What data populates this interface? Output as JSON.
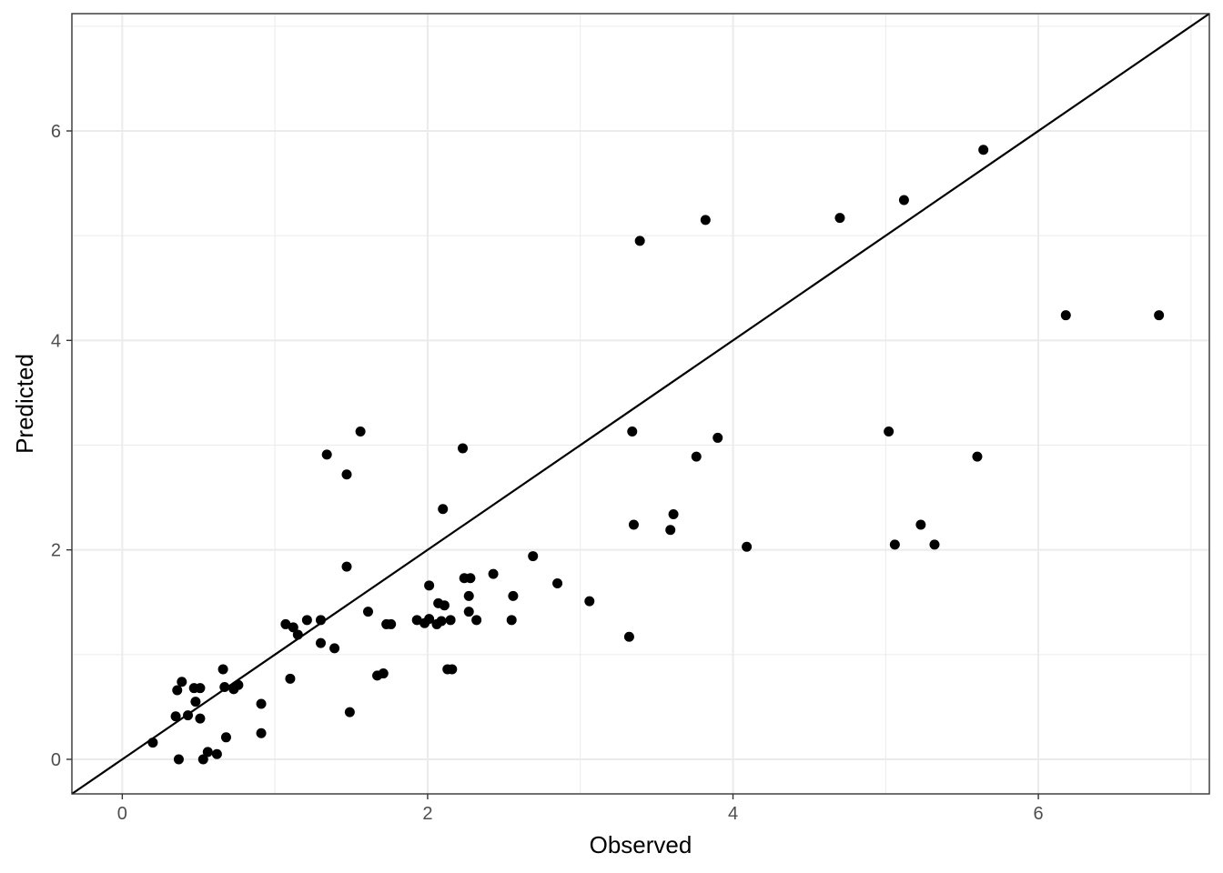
{
  "chart_data": {
    "type": "scatter",
    "title": "",
    "xlabel": "Observed",
    "ylabel": "Predicted",
    "xlim": [
      -0.33,
      7.12
    ],
    "ylim": [
      -0.33,
      7.12
    ],
    "x_ticks": [
      0,
      2,
      4,
      6
    ],
    "y_ticks": [
      0,
      2,
      4,
      6
    ],
    "x_tick_labels": [
      "0",
      "2",
      "4",
      "6"
    ],
    "y_tick_labels": [
      "0",
      "2",
      "4",
      "6"
    ],
    "grid": true,
    "legend": "none",
    "reference_line": {
      "type": "identity",
      "slope": 1,
      "intercept": 0
    },
    "point_color": "#000000",
    "line_color": "#000000",
    "grid_color": "#ebebeb",
    "points": [
      [
        0.2,
        0.16
      ],
      [
        0.37,
        0.0
      ],
      [
        0.35,
        0.41
      ],
      [
        0.43,
        0.42
      ],
      [
        0.51,
        0.39
      ],
      [
        0.36,
        0.66
      ],
      [
        0.39,
        0.74
      ],
      [
        0.47,
        0.68
      ],
      [
        0.51,
        0.68
      ],
      [
        0.48,
        0.55
      ],
      [
        0.53,
        0.0
      ],
      [
        0.56,
        0.07
      ],
      [
        0.62,
        0.05
      ],
      [
        0.68,
        0.21
      ],
      [
        0.66,
        0.86
      ],
      [
        0.67,
        0.69
      ],
      [
        0.73,
        0.67
      ],
      [
        0.76,
        0.71
      ],
      [
        0.91,
        0.53
      ],
      [
        0.91,
        0.25
      ],
      [
        1.07,
        1.29
      ],
      [
        1.12,
        1.26
      ],
      [
        1.15,
        1.19
      ],
      [
        1.21,
        1.33
      ],
      [
        1.1,
        0.77
      ],
      [
        1.3,
        1.33
      ],
      [
        1.3,
        1.11
      ],
      [
        1.39,
        1.06
      ],
      [
        1.34,
        2.91
      ],
      [
        1.47,
        2.72
      ],
      [
        1.56,
        3.13
      ],
      [
        1.47,
        1.84
      ],
      [
        1.49,
        0.45
      ],
      [
        1.61,
        1.41
      ],
      [
        1.67,
        0.8
      ],
      [
        1.71,
        0.82
      ],
      [
        1.73,
        1.29
      ],
      [
        1.76,
        1.29
      ],
      [
        1.93,
        1.33
      ],
      [
        1.98,
        1.3
      ],
      [
        2.01,
        1.66
      ],
      [
        2.01,
        1.34
      ],
      [
        2.06,
        1.29
      ],
      [
        2.07,
        1.49
      ],
      [
        2.09,
        1.32
      ],
      [
        2.11,
        1.47
      ],
      [
        2.1,
        2.39
      ],
      [
        2.13,
        0.86
      ],
      [
        2.16,
        0.86
      ],
      [
        2.15,
        1.33
      ],
      [
        2.24,
        1.73
      ],
      [
        2.27,
        1.56
      ],
      [
        2.28,
        1.73
      ],
      [
        2.27,
        1.41
      ],
      [
        2.32,
        1.33
      ],
      [
        2.23,
        2.97
      ],
      [
        2.43,
        1.77
      ],
      [
        2.55,
        1.33
      ],
      [
        2.56,
        1.56
      ],
      [
        2.69,
        1.94
      ],
      [
        2.85,
        1.68
      ],
      [
        3.06,
        1.51
      ],
      [
        3.32,
        1.17
      ],
      [
        3.34,
        3.13
      ],
      [
        3.35,
        2.24
      ],
      [
        3.39,
        4.95
      ],
      [
        3.59,
        2.19
      ],
      [
        3.61,
        2.34
      ],
      [
        3.76,
        2.89
      ],
      [
        3.82,
        5.15
      ],
      [
        3.9,
        3.07
      ],
      [
        4.09,
        2.03
      ],
      [
        4.7,
        5.17
      ],
      [
        5.02,
        3.13
      ],
      [
        5.06,
        2.05
      ],
      [
        5.12,
        5.34
      ],
      [
        5.23,
        2.24
      ],
      [
        5.32,
        2.05
      ],
      [
        5.6,
        2.89
      ],
      [
        5.64,
        5.82
      ],
      [
        6.18,
        4.24
      ],
      [
        6.79,
        4.24
      ]
    ]
  }
}
